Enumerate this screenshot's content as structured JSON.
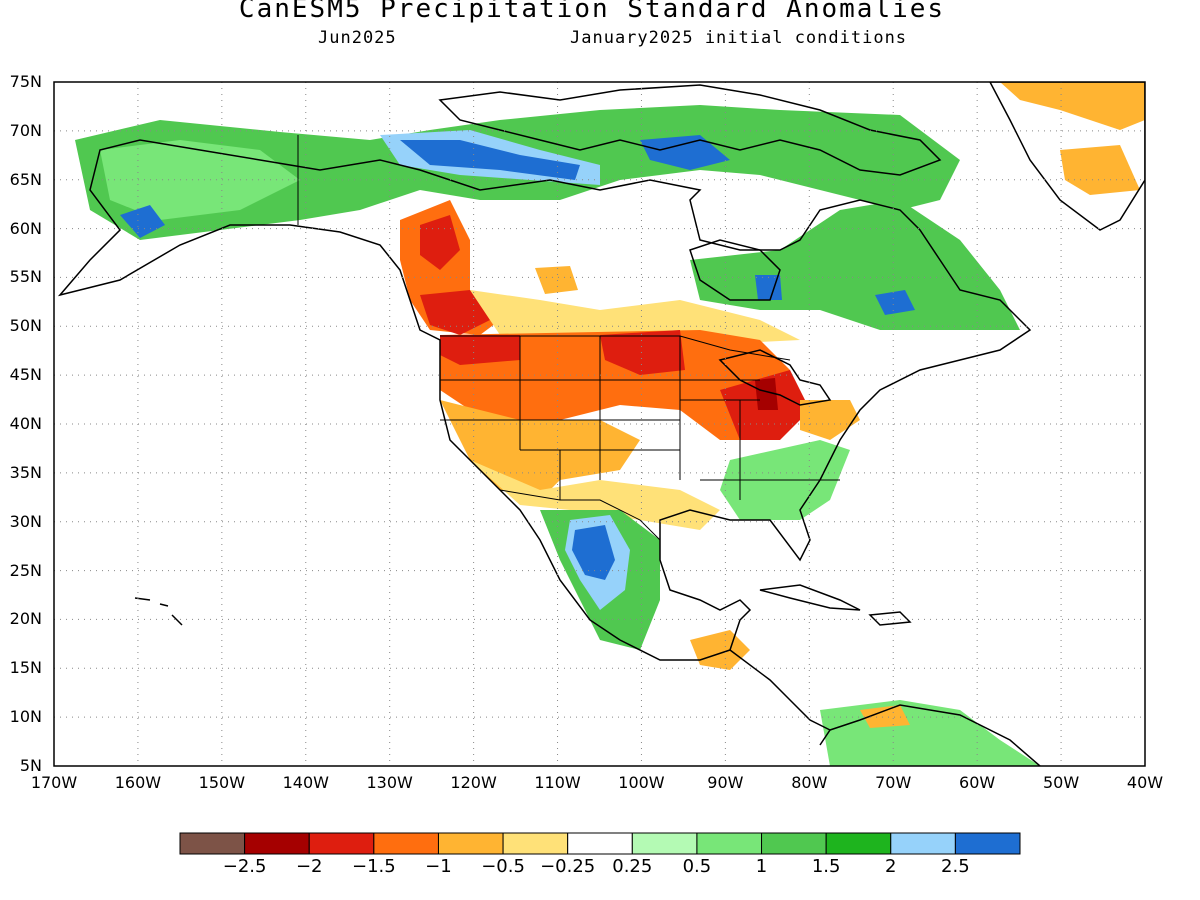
{
  "title": "CanESM5 Precipitation Standard Anomalies",
  "subtitle_left": "Jun2025",
  "subtitle_right": "January2025 initial conditions",
  "map": {
    "lon_range": [
      -170,
      -40
    ],
    "lat_range": [
      5,
      75
    ],
    "lat_labels": [
      "75N",
      "70N",
      "65N",
      "60N",
      "55N",
      "50N",
      "45N",
      "40N",
      "35N",
      "30N",
      "25N",
      "20N",
      "15N",
      "10N",
      "5N"
    ],
    "lon_labels": [
      "170W",
      "160W",
      "150W",
      "140W",
      "130W",
      "120W",
      "110W",
      "100W",
      "90W",
      "80W",
      "70W",
      "60W",
      "50W",
      "40W"
    ],
    "grid": true
  },
  "colorbar": {
    "colors": [
      "#7d5347",
      "#a50000",
      "#de1e0f",
      "#ff6e0f",
      "#ffb432",
      "#ffe178",
      "#ffffff",
      "#b4fab4",
      "#78e678",
      "#50c850",
      "#1eb41e",
      "#96d2fa",
      "#1e6ed2"
    ],
    "labels": [
      "−2.5",
      "−2",
      "−1.5",
      "−1",
      "−0.5",
      "−0.25",
      "0.25",
      "0.5",
      "1",
      "1.5",
      "2",
      "2.5"
    ]
  }
}
